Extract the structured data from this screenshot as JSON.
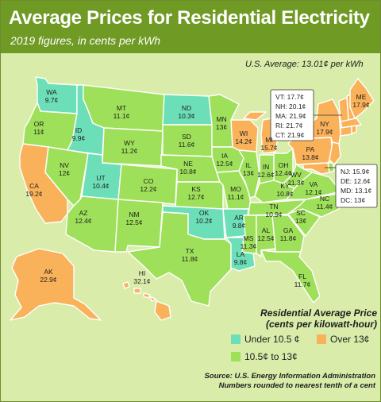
{
  "header": {
    "title": "Average Prices for Residential Electricity",
    "subtitle": "2019 figures, in cents per kWh"
  },
  "us_average": "U.S. Average: 13.01¢ per kWh",
  "colors": {
    "under": "#6cdfb8",
    "mid": "#9fe05a",
    "over": "#fab25a",
    "header": "#6f9a24",
    "background": "#d9ecaa"
  },
  "states": [
    {
      "abbr": "WA",
      "value": "9.7¢",
      "category": "under"
    },
    {
      "abbr": "OR",
      "value": "11¢",
      "category": "mid"
    },
    {
      "abbr": "CA",
      "value": "19.2¢",
      "category": "over"
    },
    {
      "abbr": "ID",
      "value": "9.9¢",
      "category": "under"
    },
    {
      "abbr": "NV",
      "value": "12¢",
      "category": "mid"
    },
    {
      "abbr": "UT",
      "value": "10.4¢",
      "category": "under"
    },
    {
      "abbr": "AZ",
      "value": "12.4¢",
      "category": "mid"
    },
    {
      "abbr": "MT",
      "value": "11.1¢",
      "category": "mid"
    },
    {
      "abbr": "WY",
      "value": "11.2¢",
      "category": "mid"
    },
    {
      "abbr": "CO",
      "value": "12.2¢",
      "category": "mid"
    },
    {
      "abbr": "NM",
      "value": "12.5¢",
      "category": "mid"
    },
    {
      "abbr": "ND",
      "value": "10.3¢",
      "category": "under"
    },
    {
      "abbr": "SD",
      "value": "11.6¢",
      "category": "mid"
    },
    {
      "abbr": "NE",
      "value": "10.8¢",
      "category": "mid"
    },
    {
      "abbr": "KS",
      "value": "12.7¢",
      "category": "mid"
    },
    {
      "abbr": "OK",
      "value": "10.2¢",
      "category": "under"
    },
    {
      "abbr": "TX",
      "value": "11.8¢",
      "category": "mid"
    },
    {
      "abbr": "MN",
      "value": "13¢",
      "category": "mid"
    },
    {
      "abbr": "IA",
      "value": "12.5¢",
      "category": "mid"
    },
    {
      "abbr": "MO",
      "value": "11.1¢",
      "category": "mid"
    },
    {
      "abbr": "AR",
      "value": "9.8¢",
      "category": "under"
    },
    {
      "abbr": "LA",
      "value": "9.8¢",
      "category": "under"
    },
    {
      "abbr": "WI",
      "value": "14.2¢",
      "category": "over"
    },
    {
      "abbr": "IL",
      "value": "13¢",
      "category": "mid"
    },
    {
      "abbr": "MI",
      "value": "15.7¢",
      "category": "over"
    },
    {
      "abbr": "IN",
      "value": "12.6¢",
      "category": "mid"
    },
    {
      "abbr": "OH",
      "value": "12.4¢",
      "category": "mid"
    },
    {
      "abbr": "KY",
      "value": "10.8¢",
      "category": "mid"
    },
    {
      "abbr": "TN",
      "value": "10.9¢",
      "category": "mid"
    },
    {
      "abbr": "MS",
      "value": "11.3¢",
      "category": "mid"
    },
    {
      "abbr": "AL",
      "value": "12.5¢",
      "category": "mid"
    },
    {
      "abbr": "GA",
      "value": "11.8¢",
      "category": "mid"
    },
    {
      "abbr": "FL",
      "value": "11.7¢",
      "category": "mid"
    },
    {
      "abbr": "SC",
      "value": "13¢",
      "category": "mid"
    },
    {
      "abbr": "NC",
      "value": "11.4¢",
      "category": "mid"
    },
    {
      "abbr": "VA",
      "value": "12.1¢",
      "category": "mid"
    },
    {
      "abbr": "WV",
      "value": "11.3¢",
      "category": "mid"
    },
    {
      "abbr": "PA",
      "value": "13.8¢",
      "category": "over"
    },
    {
      "abbr": "NY",
      "value": "17.9¢",
      "category": "over"
    },
    {
      "abbr": "ME",
      "value": "17.9¢",
      "category": "over"
    },
    {
      "abbr": "AK",
      "value": "22.9¢",
      "category": "over"
    },
    {
      "abbr": "HI",
      "value": "32.1¢",
      "category": "over"
    }
  ],
  "callouts": {
    "new_england": [
      "VT: 17.7¢",
      "NH: 20.1¢",
      "MA: 21.9¢",
      "RI: 21.7¢",
      "CT: 21.9¢"
    ],
    "mid_atlantic": [
      "NJ: 15.9¢",
      "DE: 12.6¢",
      "MD: 13.1¢",
      "DC: 13¢"
    ]
  },
  "legend": {
    "title_line1": "Residential Average Price",
    "title_line2": "(cents per kilowatt-hour)",
    "under": "Under 10.5 ¢",
    "mid": "10.5¢ to 13¢",
    "over": "Over 13¢"
  },
  "source": {
    "line1": "Source: U.S. Energy Information Administration",
    "line2": "Numbers rounded to nearest tenth of a cent"
  }
}
